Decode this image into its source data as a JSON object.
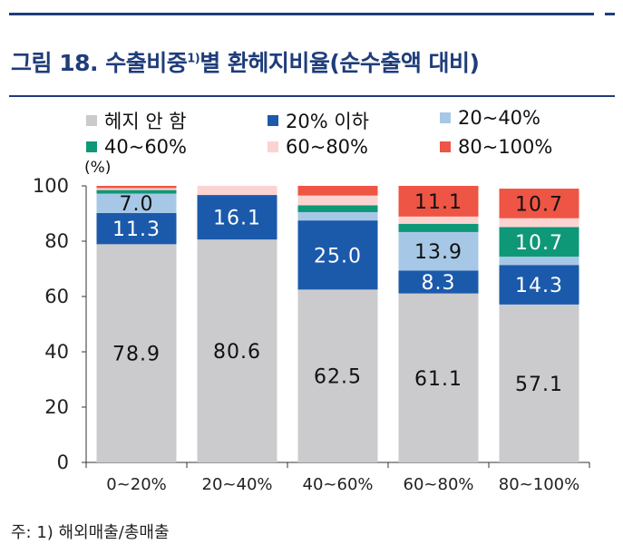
{
  "title": {
    "main": "그림 18. 수출비중",
    "sup": "1)",
    "rest": "별 환헤지비율(순수출액 대비)"
  },
  "unit": "(%)",
  "footnote": "주: 1) 해외매출/총매출",
  "chart_data": {
    "type": "bar",
    "stacked": true,
    "categories": [
      "0~20%",
      "20~40%",
      "40~60%",
      "60~80%",
      "80~100%"
    ],
    "series": [
      {
        "name": "헤지 안 함",
        "color": "#cbcbcd",
        "values": [
          78.9,
          80.6,
          62.5,
          61.1,
          57.1
        ]
      },
      {
        "name": "20% 이하",
        "color": "#1b5aab",
        "values": [
          11.3,
          16.1,
          25.0,
          8.3,
          14.3
        ]
      },
      {
        "name": "20~40%",
        "color": "#a6c8e6",
        "values": [
          7.0,
          0.0,
          3.0,
          13.9,
          3.0
        ]
      },
      {
        "name": "40~60%",
        "color": "#0f9878",
        "values": [
          1.3,
          0.0,
          2.5,
          3.0,
          10.7
        ]
      },
      {
        "name": "60~80%",
        "color": "#fbd3d0",
        "values": [
          0.7,
          3.3,
          3.5,
          2.6,
          3.2
        ]
      },
      {
        "name": "80~100%",
        "color": "#ee5544",
        "values": [
          0.8,
          0.0,
          3.5,
          11.1,
          10.7
        ]
      }
    ],
    "data_labels": [
      {
        "category": 0,
        "series": 0,
        "text": "78.9"
      },
      {
        "category": 0,
        "series": 1,
        "text": "11.3"
      },
      {
        "category": 0,
        "series": 2,
        "text": "7.0"
      },
      {
        "category": 1,
        "series": 0,
        "text": "80.6"
      },
      {
        "category": 1,
        "series": 1,
        "text": "16.1"
      },
      {
        "category": 2,
        "series": 0,
        "text": "62.5"
      },
      {
        "category": 2,
        "series": 1,
        "text": "25.0"
      },
      {
        "category": 3,
        "series": 0,
        "text": "61.1"
      },
      {
        "category": 3,
        "series": 1,
        "text": "8.3"
      },
      {
        "category": 3,
        "series": 2,
        "text": "13.9"
      },
      {
        "category": 3,
        "series": 5,
        "text": "11.1"
      },
      {
        "category": 4,
        "series": 0,
        "text": "57.1"
      },
      {
        "category": 4,
        "series": 1,
        "text": "14.3"
      },
      {
        "category": 4,
        "series": 3,
        "text": "10.7"
      },
      {
        "category": 4,
        "series": 5,
        "text": "10.7"
      }
    ],
    "ylim": [
      0,
      100
    ],
    "yticks": [
      0,
      20,
      40,
      60,
      80,
      100
    ],
    "grid": false,
    "legend_position": "top"
  }
}
